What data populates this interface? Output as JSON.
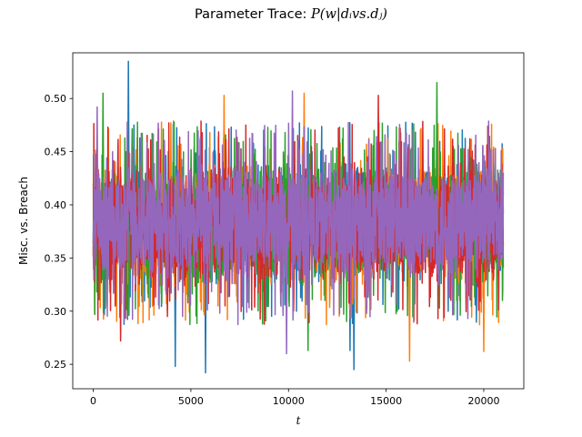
{
  "chart_data": {
    "type": "line",
    "title_prefix": "Parameter Trace: ",
    "title_math": "P(w|dᵢvs.dⱼ)",
    "xlabel": "t",
    "ylabel": "Misc. vs. Breach",
    "xlim": [
      -1050,
      22050
    ],
    "ylim": [
      0.227,
      0.543
    ],
    "xticks": [
      0,
      5000,
      10000,
      15000,
      20000
    ],
    "xtick_labels": [
      "0",
      "5000",
      "10000",
      "15000",
      "20000"
    ],
    "yticks": [
      0.25,
      0.3,
      0.35,
      0.4,
      0.45,
      0.5
    ],
    "ytick_labels": [
      "0.25",
      "0.30",
      "0.35",
      "0.40",
      "0.45",
      "0.50"
    ],
    "grid": false,
    "legend": "none",
    "x_range": [
      0,
      21000
    ],
    "n_points_per_series": 21000,
    "series": [
      {
        "color": "#1f77b4",
        "center": 0.383,
        "band": [
          0.32,
          0.44
        ],
        "extremes": [
          {
            "x": 1800,
            "y": 0.535
          },
          {
            "x": 5750,
            "y": 0.242
          },
          {
            "x": 4200,
            "y": 0.248
          },
          {
            "x": 13350,
            "y": 0.245
          },
          {
            "x": 13150,
            "y": 0.263
          }
        ]
      },
      {
        "color": "#ff7f0e",
        "center": 0.383,
        "band": [
          0.32,
          0.44
        ],
        "extremes": [
          {
            "x": 16200,
            "y": 0.253
          },
          {
            "x": 20000,
            "y": 0.262
          },
          {
            "x": 10800,
            "y": 0.505
          },
          {
            "x": 6700,
            "y": 0.503
          }
        ]
      },
      {
        "color": "#2ca02c",
        "center": 0.383,
        "band": [
          0.32,
          0.44
        ],
        "extremes": [
          {
            "x": 500,
            "y": 0.505
          },
          {
            "x": 17600,
            "y": 0.515
          },
          {
            "x": 11000,
            "y": 0.263
          }
        ]
      },
      {
        "color": "#d62728",
        "center": 0.383,
        "band": [
          0.32,
          0.44
        ],
        "extremes": [
          {
            "x": 14600,
            "y": 0.503
          },
          {
            "x": 1400,
            "y": 0.272
          },
          {
            "x": 3800,
            "y": 0.295
          }
        ]
      },
      {
        "color": "#9467bd",
        "center": 0.383,
        "band": [
          0.32,
          0.44
        ],
        "extremes": [
          {
            "x": 10200,
            "y": 0.507
          },
          {
            "x": 9900,
            "y": 0.26
          },
          {
            "x": 200,
            "y": 0.492
          }
        ]
      }
    ]
  }
}
